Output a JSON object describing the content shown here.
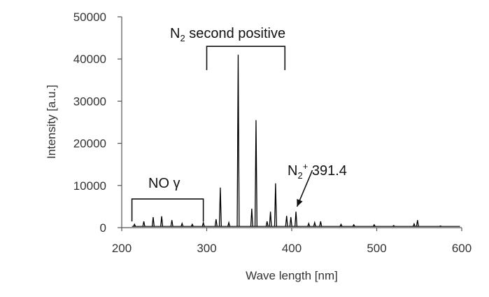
{
  "chart_data": {
    "type": "line",
    "xlabel": "Wave length [nm]",
    "ylabel": "Intensity [a.u.]",
    "xlim": [
      200,
      600
    ],
    "ylim": [
      0,
      50000
    ],
    "x_ticks": [
      "200",
      "300",
      "400",
      "500",
      "600"
    ],
    "y_ticks": [
      "0",
      "10000",
      "20000",
      "30000",
      "40000",
      "50000"
    ],
    "grid": false,
    "legend": "none",
    "series": [
      {
        "color": "#000000",
        "peaks": [
          {
            "x": 215,
            "y": 800
          },
          {
            "x": 226,
            "y": 1500
          },
          {
            "x": 237,
            "y": 2500
          },
          {
            "x": 247,
            "y": 2700
          },
          {
            "x": 259,
            "y": 1800
          },
          {
            "x": 271,
            "y": 1000
          },
          {
            "x": 283,
            "y": 800
          },
          {
            "x": 296,
            "y": 1200
          },
          {
            "x": 311,
            "y": 2000
          },
          {
            "x": 316,
            "y": 9500
          },
          {
            "x": 326,
            "y": 1200
          },
          {
            "x": 337,
            "y": 41000
          },
          {
            "x": 353,
            "y": 4500
          },
          {
            "x": 358,
            "y": 25500
          },
          {
            "x": 371,
            "y": 1500
          },
          {
            "x": 375,
            "y": 3800
          },
          {
            "x": 381,
            "y": 10500
          },
          {
            "x": 394,
            "y": 2800
          },
          {
            "x": 399,
            "y": 2500
          },
          {
            "x": 405,
            "y": 3800
          },
          {
            "x": 420,
            "y": 1000
          },
          {
            "x": 427,
            "y": 1200
          },
          {
            "x": 434,
            "y": 1500
          },
          {
            "x": 458,
            "y": 800
          },
          {
            "x": 473,
            "y": 700
          },
          {
            "x": 497,
            "y": 700
          },
          {
            "x": 520,
            "y": 500
          },
          {
            "x": 544,
            "y": 900
          },
          {
            "x": 548,
            "y": 1800
          },
          {
            "x": 575,
            "y": 400
          }
        ]
      }
    ],
    "annotations": [
      {
        "label_main": "N",
        "label_sub": "2",
        "label_rest": " second positive",
        "bracket_x": [
          300,
          392
        ],
        "bracket_y": 43000
      },
      {
        "label": "NO γ",
        "bracket_x": [
          212,
          296
        ],
        "bracket_y": 6800
      },
      {
        "label_main": "N",
        "label_sub": "2",
        "label_sup": "+",
        "label_rest": " 391.4",
        "arrow_to": [
          391.4,
          0
        ]
      }
    ]
  }
}
